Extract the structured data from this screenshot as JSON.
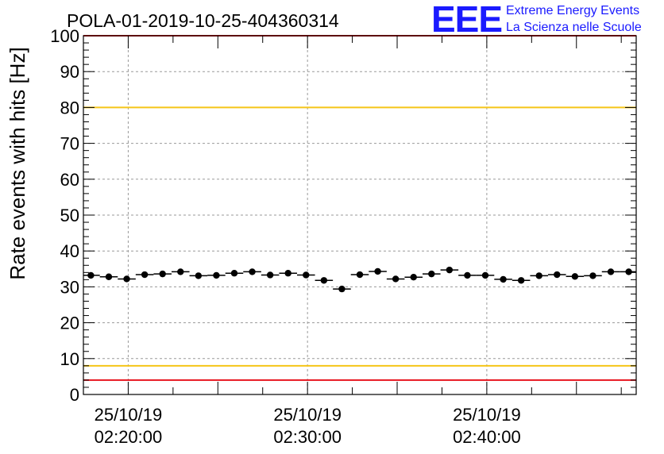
{
  "chart_data": {
    "type": "scatter",
    "title": "POLA-01-2019-10-25-404360314",
    "xlabel": "",
    "ylabel": "Rate events with hits [Hz]",
    "ylim": [
      0,
      100
    ],
    "y_ticks": [
      0,
      10,
      20,
      30,
      40,
      50,
      60,
      70,
      80,
      90,
      100
    ],
    "xlim": [
      "2019-10-25 02:17:30",
      "2019-10-25 02:48:20"
    ],
    "x_ticks": [
      {
        "x": "2019-10-25 02:20:00",
        "label_date": "25/10/19",
        "label_time": "02:20:00"
      },
      {
        "x": "2019-10-25 02:30:00",
        "label_date": "25/10/19",
        "label_time": "02:30:00"
      },
      {
        "x": "2019-10-25 02:40:00",
        "label_date": "25/10/19",
        "label_time": "02:40:00"
      }
    ],
    "grid": true,
    "error_bar_width_seconds": 60,
    "series": [
      {
        "marker": "circle",
        "color": "#000000",
        "points": [
          {
            "x": "2019-10-25 02:17:55",
            "y": 33.2
          },
          {
            "x": "2019-10-25 02:18:55",
            "y": 32.8
          },
          {
            "x": "2019-10-25 02:19:55",
            "y": 32.2
          },
          {
            "x": "2019-10-25 02:20:55",
            "y": 33.4
          },
          {
            "x": "2019-10-25 02:21:55",
            "y": 33.6
          },
          {
            "x": "2019-10-25 02:22:55",
            "y": 34.2
          },
          {
            "x": "2019-10-25 02:23:55",
            "y": 33.1
          },
          {
            "x": "2019-10-25 02:24:55",
            "y": 33.2
          },
          {
            "x": "2019-10-25 02:25:55",
            "y": 33.8
          },
          {
            "x": "2019-10-25 02:26:55",
            "y": 34.2
          },
          {
            "x": "2019-10-25 02:27:55",
            "y": 33.3
          },
          {
            "x": "2019-10-25 02:28:55",
            "y": 33.8
          },
          {
            "x": "2019-10-25 02:29:55",
            "y": 33.3
          },
          {
            "x": "2019-10-25 02:30:55",
            "y": 31.8
          },
          {
            "x": "2019-10-25 02:31:55",
            "y": 29.4
          },
          {
            "x": "2019-10-25 02:32:55",
            "y": 33.4
          },
          {
            "x": "2019-10-25 02:33:55",
            "y": 34.3
          },
          {
            "x": "2019-10-25 02:34:55",
            "y": 32.2
          },
          {
            "x": "2019-10-25 02:35:55",
            "y": 32.7
          },
          {
            "x": "2019-10-25 02:36:55",
            "y": 33.6
          },
          {
            "x": "2019-10-25 02:37:55",
            "y": 34.7
          },
          {
            "x": "2019-10-25 02:38:55",
            "y": 33.2
          },
          {
            "x": "2019-10-25 02:39:55",
            "y": 33.2
          },
          {
            "x": "2019-10-25 02:40:55",
            "y": 32.1
          },
          {
            "x": "2019-10-25 02:41:55",
            "y": 31.8
          },
          {
            "x": "2019-10-25 02:42:55",
            "y": 33.1
          },
          {
            "x": "2019-10-25 02:43:55",
            "y": 33.4
          },
          {
            "x": "2019-10-25 02:44:55",
            "y": 32.9
          },
          {
            "x": "2019-10-25 02:45:55",
            "y": 33.1
          },
          {
            "x": "2019-10-25 02:46:55",
            "y": 34.2
          },
          {
            "x": "2019-10-25 02:47:55",
            "y": 34.2
          }
        ]
      }
    ],
    "reference_lines": [
      {
        "y": 100,
        "color": "#e8141e"
      },
      {
        "y": 80,
        "color": "#f5c518"
      },
      {
        "y": 8,
        "color": "#f5c518"
      },
      {
        "y": 4,
        "color": "#e8141e"
      }
    ]
  },
  "logo": {
    "mark": "EEE",
    "line1": "Extreme Energy Events",
    "line2": "La Scienza nelle Scuole",
    "color": "#1a1aff"
  }
}
